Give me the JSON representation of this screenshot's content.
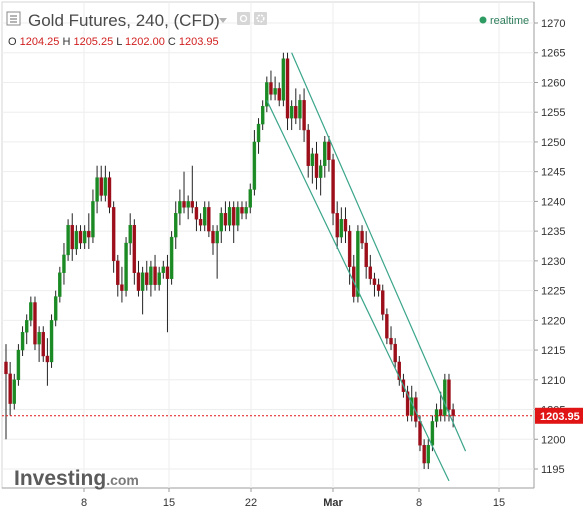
{
  "header": {
    "title": "Gold Futures, 240, (CFD)",
    "ohlc": [
      {
        "key": "O",
        "value": "1204.25"
      },
      {
        "key": "H",
        "value": "1205.25"
      },
      {
        "key": "L",
        "value": "1202.00"
      },
      {
        "key": "C",
        "value": "1203.95"
      }
    ],
    "realtime_label": "realtime"
  },
  "brand": {
    "name": "Investing",
    "suffix": ".com"
  },
  "colors": {
    "up": "#1b8a24",
    "down": "#9b0e1a",
    "wick": "#222222",
    "channel": "#3aa58a",
    "last_price": "#e01414",
    "realtime_dot": "#2e9b62"
  },
  "chart_data": {
    "type": "candlestick",
    "title": "Gold Futures, 240, (CFD)",
    "ylim": [
      1192,
      1272
    ],
    "y_ticks": [
      1195,
      1200,
      1205,
      1210,
      1215,
      1220,
      1225,
      1230,
      1235,
      1240,
      1245,
      1250,
      1255,
      1260,
      1265,
      1270
    ],
    "x_ticks": [
      "8",
      "15",
      "22",
      "Mar",
      "8",
      "15"
    ],
    "last_price": 1203.95,
    "last_price_label": "1203.95",
    "series": [
      {
        "o": 1213,
        "h": 1216,
        "l": 1200,
        "c": 1211
      },
      {
        "o": 1211,
        "h": 1213,
        "l": 1204,
        "c": 1206
      },
      {
        "o": 1206,
        "h": 1211,
        "l": 1205,
        "c": 1210
      },
      {
        "o": 1210,
        "h": 1216,
        "l": 1209,
        "c": 1215
      },
      {
        "o": 1215,
        "h": 1219,
        "l": 1214,
        "c": 1218
      },
      {
        "o": 1218,
        "h": 1221,
        "l": 1216,
        "c": 1220
      },
      {
        "o": 1220,
        "h": 1224,
        "l": 1219,
        "c": 1223
      },
      {
        "o": 1223,
        "h": 1224,
        "l": 1215,
        "c": 1216
      },
      {
        "o": 1216,
        "h": 1219,
        "l": 1213,
        "c": 1218
      },
      {
        "o": 1218,
        "h": 1219,
        "l": 1213,
        "c": 1214
      },
      {
        "o": 1214,
        "h": 1217,
        "l": 1209,
        "c": 1213
      },
      {
        "o": 1213,
        "h": 1221,
        "l": 1212,
        "c": 1220
      },
      {
        "o": 1220,
        "h": 1225,
        "l": 1219,
        "c": 1224
      },
      {
        "o": 1224,
        "h": 1229,
        "l": 1223,
        "c": 1228
      },
      {
        "o": 1228,
        "h": 1233,
        "l": 1226,
        "c": 1231
      },
      {
        "o": 1231,
        "h": 1237,
        "l": 1230,
        "c": 1236
      },
      {
        "o": 1236,
        "h": 1238,
        "l": 1230,
        "c": 1232
      },
      {
        "o": 1232,
        "h": 1236,
        "l": 1231,
        "c": 1235
      },
      {
        "o": 1235,
        "h": 1236,
        "l": 1232,
        "c": 1233
      },
      {
        "o": 1233,
        "h": 1236,
        "l": 1232,
        "c": 1235
      },
      {
        "o": 1235,
        "h": 1238,
        "l": 1232,
        "c": 1234
      },
      {
        "o": 1234,
        "h": 1242,
        "l": 1233,
        "c": 1240
      },
      {
        "o": 1240,
        "h": 1246,
        "l": 1238,
        "c": 1244
      },
      {
        "o": 1244,
        "h": 1246,
        "l": 1240,
        "c": 1241
      },
      {
        "o": 1241,
        "h": 1246,
        "l": 1240,
        "c": 1244
      },
      {
        "o": 1244,
        "h": 1245,
        "l": 1238,
        "c": 1239
      },
      {
        "o": 1239,
        "h": 1240,
        "l": 1228,
        "c": 1230
      },
      {
        "o": 1230,
        "h": 1231,
        "l": 1224,
        "c": 1226
      },
      {
        "o": 1226,
        "h": 1229,
        "l": 1223,
        "c": 1225
      },
      {
        "o": 1225,
        "h": 1234,
        "l": 1224,
        "c": 1233
      },
      {
        "o": 1233,
        "h": 1238,
        "l": 1231,
        "c": 1236
      },
      {
        "o": 1236,
        "h": 1237,
        "l": 1226,
        "c": 1228
      },
      {
        "o": 1228,
        "h": 1230,
        "l": 1224,
        "c": 1225
      },
      {
        "o": 1225,
        "h": 1229,
        "l": 1221,
        "c": 1228
      },
      {
        "o": 1228,
        "h": 1230,
        "l": 1225,
        "c": 1226
      },
      {
        "o": 1226,
        "h": 1230,
        "l": 1224,
        "c": 1229
      },
      {
        "o": 1229,
        "h": 1231,
        "l": 1225,
        "c": 1226
      },
      {
        "o": 1226,
        "h": 1229,
        "l": 1225,
        "c": 1228
      },
      {
        "o": 1228,
        "h": 1230,
        "l": 1227,
        "c": 1229
      },
      {
        "o": 1229,
        "h": 1231,
        "l": 1218,
        "c": 1227
      },
      {
        "o": 1227,
        "h": 1235,
        "l": 1226,
        "c": 1234
      },
      {
        "o": 1234,
        "h": 1240,
        "l": 1232,
        "c": 1238
      },
      {
        "o": 1238,
        "h": 1242,
        "l": 1236,
        "c": 1240
      },
      {
        "o": 1240,
        "h": 1245,
        "l": 1238,
        "c": 1239
      },
      {
        "o": 1239,
        "h": 1241,
        "l": 1237,
        "c": 1240
      },
      {
        "o": 1240,
        "h": 1246,
        "l": 1238,
        "c": 1239
      },
      {
        "o": 1239,
        "h": 1240,
        "l": 1235,
        "c": 1237
      },
      {
        "o": 1237,
        "h": 1238,
        "l": 1235,
        "c": 1236
      },
      {
        "o": 1236,
        "h": 1240,
        "l": 1235,
        "c": 1239
      },
      {
        "o": 1239,
        "h": 1240,
        "l": 1234,
        "c": 1235
      },
      {
        "o": 1235,
        "h": 1236,
        "l": 1231,
        "c": 1233
      },
      {
        "o": 1233,
        "h": 1236,
        "l": 1227,
        "c": 1235
      },
      {
        "o": 1235,
        "h": 1239,
        "l": 1233,
        "c": 1238
      },
      {
        "o": 1238,
        "h": 1240,
        "l": 1235,
        "c": 1236
      },
      {
        "o": 1236,
        "h": 1240,
        "l": 1235,
        "c": 1239
      },
      {
        "o": 1239,
        "h": 1240,
        "l": 1233,
        "c": 1236
      },
      {
        "o": 1236,
        "h": 1240,
        "l": 1235,
        "c": 1239
      },
      {
        "o": 1239,
        "h": 1240,
        "l": 1237,
        "c": 1238
      },
      {
        "o": 1238,
        "h": 1240,
        "l": 1237,
        "c": 1239
      },
      {
        "o": 1239,
        "h": 1243,
        "l": 1238,
        "c": 1242
      },
      {
        "o": 1242,
        "h": 1252,
        "l": 1241,
        "c": 1250
      },
      {
        "o": 1250,
        "h": 1254,
        "l": 1248,
        "c": 1253
      },
      {
        "o": 1253,
        "h": 1257,
        "l": 1252,
        "c": 1256
      },
      {
        "o": 1256,
        "h": 1261,
        "l": 1255,
        "c": 1260
      },
      {
        "o": 1260,
        "h": 1262,
        "l": 1257,
        "c": 1258
      },
      {
        "o": 1258,
        "h": 1261,
        "l": 1257,
        "c": 1259
      },
      {
        "o": 1259,
        "h": 1260,
        "l": 1256,
        "c": 1257
      },
      {
        "o": 1257,
        "h": 1265,
        "l": 1256,
        "c": 1264
      },
      {
        "o": 1264,
        "h": 1265,
        "l": 1252,
        "c": 1254
      },
      {
        "o": 1254,
        "h": 1257,
        "l": 1252,
        "c": 1256
      },
      {
        "o": 1256,
        "h": 1259,
        "l": 1253,
        "c": 1254
      },
      {
        "o": 1254,
        "h": 1258,
        "l": 1252,
        "c": 1257
      },
      {
        "o": 1257,
        "h": 1259,
        "l": 1250,
        "c": 1252
      },
      {
        "o": 1252,
        "h": 1253,
        "l": 1244,
        "c": 1246
      },
      {
        "o": 1246,
        "h": 1249,
        "l": 1243,
        "c": 1248
      },
      {
        "o": 1248,
        "h": 1250,
        "l": 1242,
        "c": 1244
      },
      {
        "o": 1244,
        "h": 1247,
        "l": 1241,
        "c": 1246
      },
      {
        "o": 1246,
        "h": 1251,
        "l": 1244,
        "c": 1250
      },
      {
        "o": 1250,
        "h": 1251,
        "l": 1245,
        "c": 1247
      },
      {
        "o": 1247,
        "h": 1248,
        "l": 1236,
        "c": 1238
      },
      {
        "o": 1238,
        "h": 1240,
        "l": 1232,
        "c": 1234
      },
      {
        "o": 1234,
        "h": 1239,
        "l": 1233,
        "c": 1237
      },
      {
        "o": 1237,
        "h": 1239,
        "l": 1233,
        "c": 1235
      },
      {
        "o": 1235,
        "h": 1236,
        "l": 1226,
        "c": 1229
      },
      {
        "o": 1229,
        "h": 1231,
        "l": 1223,
        "c": 1224
      },
      {
        "o": 1224,
        "h": 1236,
        "l": 1223,
        "c": 1235
      },
      {
        "o": 1235,
        "h": 1236,
        "l": 1232,
        "c": 1233
      },
      {
        "o": 1233,
        "h": 1235,
        "l": 1227,
        "c": 1229
      },
      {
        "o": 1229,
        "h": 1231,
        "l": 1226,
        "c": 1227
      },
      {
        "o": 1227,
        "h": 1228,
        "l": 1224,
        "c": 1226
      },
      {
        "o": 1226,
        "h": 1227,
        "l": 1224,
        "c": 1225
      },
      {
        "o": 1225,
        "h": 1226,
        "l": 1220,
        "c": 1221
      },
      {
        "o": 1221,
        "h": 1222,
        "l": 1216,
        "c": 1217
      },
      {
        "o": 1217,
        "h": 1219,
        "l": 1215,
        "c": 1216
      },
      {
        "o": 1216,
        "h": 1217,
        "l": 1212,
        "c": 1213
      },
      {
        "o": 1213,
        "h": 1214,
        "l": 1209,
        "c": 1210
      },
      {
        "o": 1210,
        "h": 1211,
        "l": 1207,
        "c": 1208
      },
      {
        "o": 1208,
        "h": 1209,
        "l": 1203,
        "c": 1204
      },
      {
        "o": 1204,
        "h": 1209,
        "l": 1203,
        "c": 1207
      },
      {
        "o": 1207,
        "h": 1208,
        "l": 1202,
        "c": 1203
      },
      {
        "o": 1203,
        "h": 1204,
        "l": 1198,
        "c": 1199
      },
      {
        "o": 1199,
        "h": 1200,
        "l": 1195,
        "c": 1196
      },
      {
        "o": 1196,
        "h": 1200,
        "l": 1195,
        "c": 1199
      },
      {
        "o": 1199,
        "h": 1204,
        "l": 1198,
        "c": 1203
      },
      {
        "o": 1203,
        "h": 1206,
        "l": 1202,
        "c": 1205
      },
      {
        "o": 1205,
        "h": 1208,
        "l": 1203,
        "c": 1204
      },
      {
        "o": 1204,
        "h": 1211,
        "l": 1203,
        "c": 1210
      },
      {
        "o": 1210,
        "h": 1211,
        "l": 1203,
        "c": 1205
      },
      {
        "o": 1205,
        "h": 1206,
        "l": 1202,
        "c": 1204
      }
    ],
    "channel": {
      "upper": [
        [
          69,
          1265
        ],
        [
          111,
          1198
        ]
      ],
      "lower": [
        [
          63,
          1257
        ],
        [
          107,
          1193
        ]
      ]
    }
  }
}
